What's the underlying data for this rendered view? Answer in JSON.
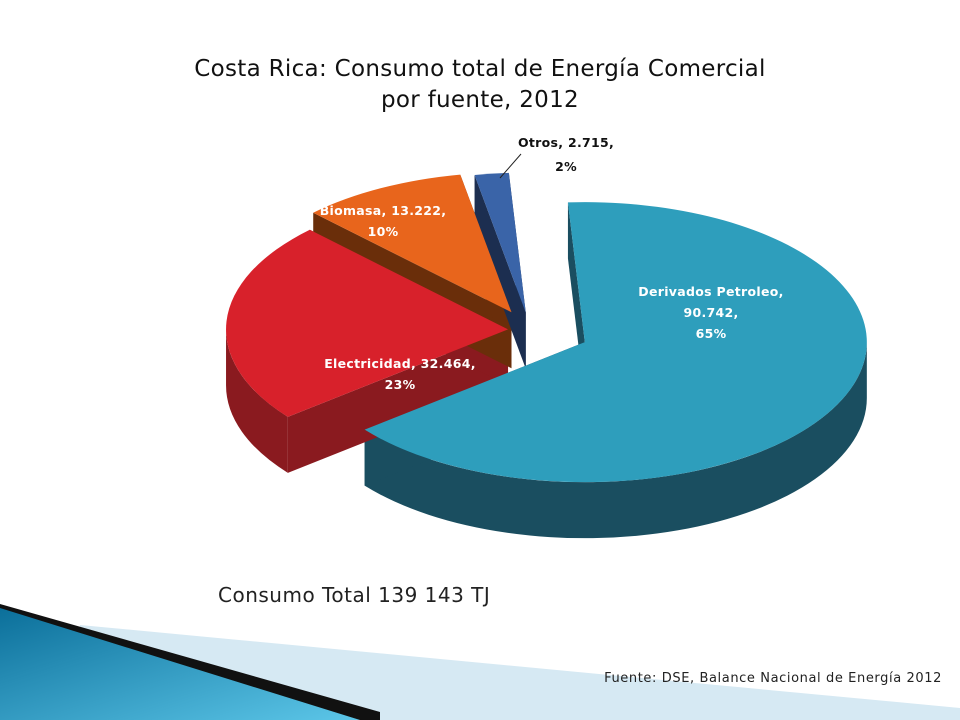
{
  "chart_data": {
    "type": "pie",
    "title_line1": "Costa Rica: Consumo total de Energía Comercial",
    "title_line2": "por fuente, 2012",
    "slices": [
      {
        "name": "Derivados Petroleo",
        "value_text": "90.742",
        "value": 90742,
        "percent_text": "65%",
        "color": "#2e9ebc",
        "side_color": "#1a4e60",
        "label_line1": "Derivados Petroleo,",
        "label_line2": "90.742,",
        "label_line3": "65%",
        "label_color": "#ffffff"
      },
      {
        "name": "Electricidad",
        "value_text": "32.464",
        "value": 32464,
        "percent_text": "23%",
        "color": "#d8212b",
        "side_color": "#8a1a1f",
        "label_line1": "Electricidad, 32.464,",
        "label_line2": "23%",
        "label_color": "#ffffff"
      },
      {
        "name": "Biomasa",
        "value_text": "13.222",
        "value": 13222,
        "percent_text": "10%",
        "color": "#e8651c",
        "side_color": "#6a2e0a",
        "label_line1": "Biomasa, 13.222,",
        "label_line2": "10%",
        "label_color": "#ffffff"
      },
      {
        "name": "Otros",
        "value_text": "2.715",
        "value": 2715,
        "percent_text": "2%",
        "color": "#3a64a8",
        "side_color": "#1c2e50",
        "label_line1": "Otros, 2.715,",
        "label_line2": "2%",
        "label_color": "#111111"
      }
    ]
  },
  "total_note": "Consumo Total 139 143 TJ",
  "source_note": "Fuente: DSE, Balance Nacional de Energía 2012"
}
